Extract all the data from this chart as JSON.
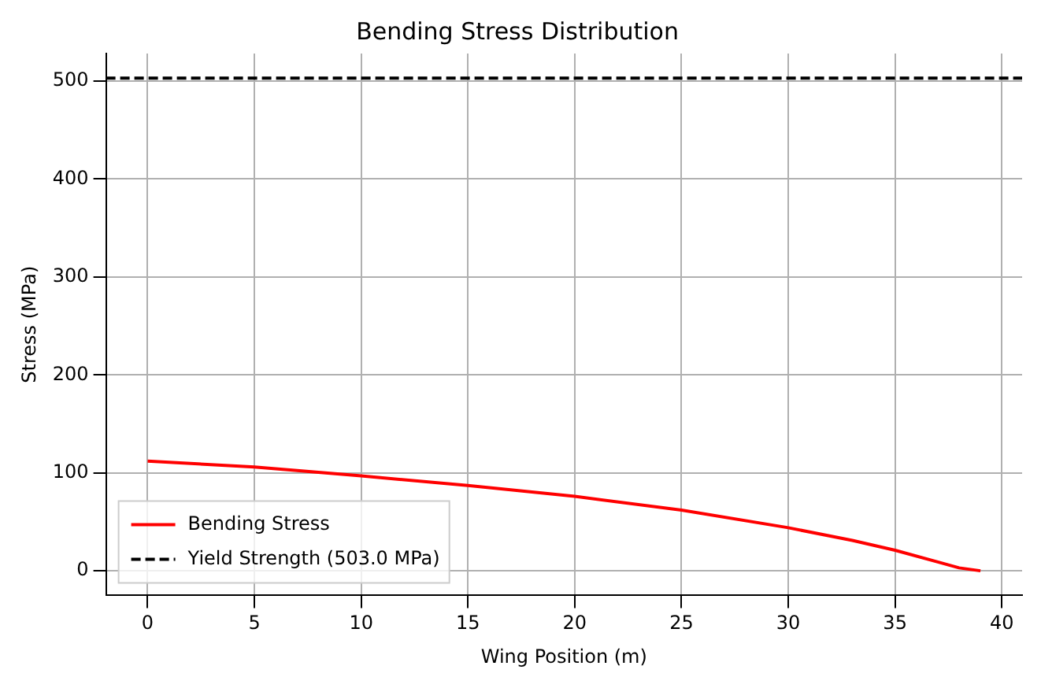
{
  "chart_data": {
    "type": "line",
    "title": "Bending Stress Distribution",
    "xlabel": "Wing Position (m)",
    "ylabel": "Stress (MPa)",
    "xlim": [
      -1.95,
      40.95
    ],
    "xticks": [
      0,
      5,
      10,
      15,
      20,
      25,
      30,
      35,
      40
    ],
    "ylim": [
      -25.15,
      528.15
    ],
    "yticks": [
      0,
      100,
      200,
      300,
      400,
      500
    ],
    "grid": true,
    "legend": "bottom left",
    "marker": "none",
    "series": [
      {
        "name": "Bending Stress",
        "color": "#ff0000",
        "line_style": "solid",
        "x": [
          0,
          5,
          10,
          15,
          20,
          25,
          30,
          33,
          35,
          37,
          38,
          39
        ],
        "values": [
          112,
          106,
          97,
          87,
          76,
          62,
          44,
          31,
          21,
          9,
          3,
          0
        ]
      },
      {
        "name": "Yield Strength (503.0 MPa)",
        "color": "#000000",
        "line_style": "dashed",
        "x": [
          -1.95,
          40.95
        ],
        "values": [
          503,
          503
        ]
      }
    ]
  }
}
